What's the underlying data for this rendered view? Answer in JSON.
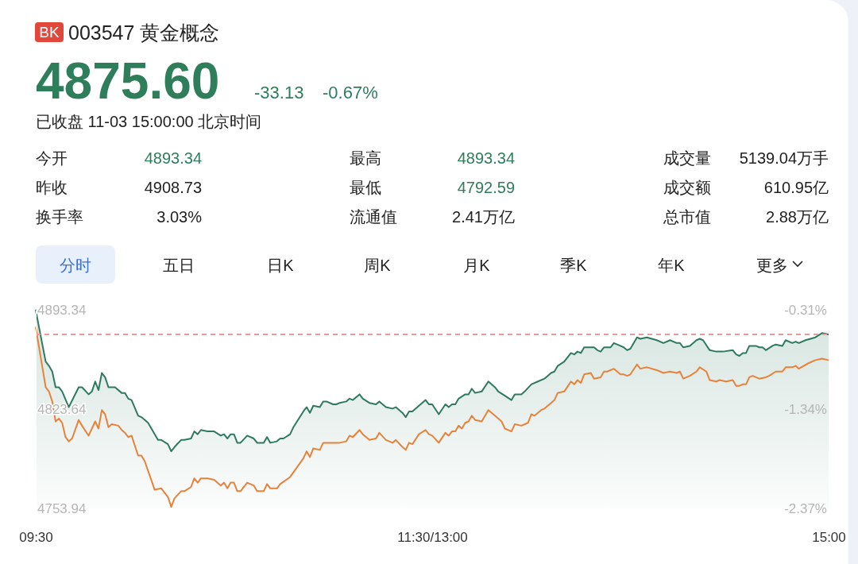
{
  "chart_data": {
    "type": "line",
    "title": "003547 黄金概念",
    "annotations": [
      "BK",
      "4875.60",
      "-33.13",
      "-0.67%",
      "已收盘 11-03 15:00:00 北京时间",
      "今开",
      "4893.34",
      "最高",
      "4893.34",
      "成交量",
      "5139.04万手",
      "昨收",
      "4908.73",
      "最低",
      "4792.59",
      "成交额",
      "610.95亿",
      "换手率",
      "3.03%",
      "流通值",
      "2.41万亿",
      "总市值",
      "2.88万亿",
      "分时",
      "五日",
      "日K",
      "周K",
      "月K",
      "季K",
      "年K",
      "更多"
    ],
    "categories": [
      "09:30",
      null,
      null,
      null,
      null,
      null,
      null,
      null,
      null,
      null,
      null,
      null,
      null,
      null,
      null,
      null,
      null,
      null,
      null,
      null,
      null,
      null,
      null,
      null,
      null,
      null,
      null,
      null,
      null,
      null,
      null,
      null,
      null,
      null,
      null,
      null,
      null,
      null,
      null,
      null,
      null,
      null,
      null,
      null,
      null,
      null,
      null,
      null,
      null,
      null,
      null,
      null,
      null,
      null,
      null,
      null,
      null,
      null,
      null,
      null,
      null,
      null,
      null,
      null,
      null,
      null,
      null,
      null,
      null,
      null,
      null,
      null,
      null,
      null,
      null,
      null,
      null,
      null,
      null,
      null,
      null,
      null,
      null,
      null,
      null,
      null,
      null,
      null,
      null,
      null,
      null,
      null,
      null,
      null,
      null,
      null,
      null,
      null,
      null,
      null,
      null,
      null,
      null,
      null,
      null,
      null,
      null,
      null,
      null,
      null,
      null,
      null,
      null,
      null,
      null,
      null,
      null,
      null,
      null,
      null,
      "11:30/13:00",
      null,
      null,
      null,
      null,
      null,
      null,
      null,
      null,
      null,
      null,
      null,
      null,
      null,
      null,
      null,
      null,
      null,
      null,
      null,
      null,
      null,
      null,
      null,
      null,
      null,
      null,
      null,
      null,
      null,
      null,
      null,
      null,
      null,
      null,
      null,
      null,
      null,
      null,
      null,
      null,
      null,
      null,
      null,
      null,
      null,
      null,
      null,
      null,
      null,
      null,
      null,
      null,
      null,
      null,
      null,
      null,
      null,
      null,
      null,
      null,
      null,
      null,
      null,
      null,
      null,
      null,
      null,
      null,
      null,
      null,
      null,
      null,
      null,
      null,
      null,
      null,
      null,
      null,
      null,
      null,
      null,
      null,
      null,
      null,
      null,
      null,
      null,
      null,
      null,
      null,
      null,
      null,
      null,
      null,
      null,
      null,
      null,
      null,
      null,
      null,
      null,
      null,
      null,
      null,
      null,
      null,
      null,
      null,
      null,
      null,
      null,
      null,
      null,
      null,
      null,
      null,
      null,
      null,
      null,
      "15:00"
    ],
    "ylim": [
      4753.94,
      4893.34
    ],
    "yticks": [
      4753.94,
      4823.64,
      4893.34
    ],
    "y2lim": [
      -2.37,
      -0.31
    ],
    "y2ticks": [
      {
        "value": -2.37,
        "label": "-2.37%"
      },
      {
        "value": -1.34,
        "label": "-1.34%"
      },
      {
        "value": -0.31,
        "label": "-0.31%"
      }
    ],
    "ref_lines": [
      {
        "axis": "y",
        "value": 4876,
        "color": "#e89a9a",
        "line_style": "dashed"
      }
    ],
    "series": [
      {
        "type": "area",
        "color": "#2f7a5e",
        "values": [
          4893,
          null,
          null,
          4857,
          4854,
          4850,
          4839,
          4839,
          4836,
          null,
          4825,
          null,
          null,
          4839,
          4839,
          null,
          4834,
          4836,
          4843,
          4837,
          4849,
          4846,
          4839,
          null,
          4839,
          null,
          4835,
          4835,
          4831,
          4830,
          null,
          4819,
          4818,
          null,
          4814,
          null,
          null,
          4802,
          4802,
          null,
          4799,
          4794,
          4797,
          null,
          4802,
          4802,
          null,
          4803,
          4808,
          4806,
          4809,
          null,
          4808,
          null,
          4808,
          null,
          4805,
          4806,
          4803,
          4806,
          4806,
          4800,
          4800,
          null,
          4805,
          null,
          4803,
          4800,
          null,
          4800,
          4804,
          4800,
          null,
          4801,
          4803,
          4803,
          null,
          4806,
          4811,
          null,
          null,
          4822,
          4825,
          4821,
          4826,
          null,
          4825,
          4829,
          4829,
          null,
          4827,
          4827,
          4828,
          null,
          4829,
          4831,
          4830,
          null,
          4834,
          4831,
          null,
          4828,
          null,
          4827,
          4829,
          null,
          4825,
          null,
          4824,
          4825,
          null,
          4821,
          4818,
          4822,
          4822,
          null,
          4826,
          null,
          4830,
          4827,
          4827,
          null,
          4820,
          null,
          4827,
          4825,
          4827,
          4827,
          4831,
          null,
          4834,
          4834,
          4838,
          4835,
          null,
          4836,
          null,
          4843,
          null,
          4839,
          4836,
          null,
          4833,
          null,
          4830,
          4834,
          null,
          4834,
          4836,
          null,
          4841,
          null,
          4843,
          null,
          4845,
          null,
          4849,
          4850,
          4854,
          null,
          4857,
          null,
          4863,
          4862,
          4864,
          4863,
          4867,
          4867,
          null,
          4867,
          4865,
          4864,
          4867,
          null,
          4867,
          4870,
          null,
          4868,
          4867,
          4865,
          4866,
          null,
          4874,
          4873,
          null,
          4874,
          null,
          null,
          4872,
          null,
          4870,
          null,
          4872,
          null,
          4870,
          4870,
          4867,
          null,
          4868,
          null,
          4872,
          4873,
          4872,
          null,
          4865,
          null,
          4864,
          4864,
          4864,
          null,
          null,
          4865,
          4862,
          4861,
          4863,
          4863,
          4868,
          null,
          4868,
          4867,
          4867,
          4865,
          null,
          4868,
          4869,
          null,
          4868,
          4872,
          null,
          4870,
          4871,
          4870,
          null,
          4872,
          null,
          null,
          4874,
          null,
          4877,
          null,
          4876
        ]
      },
      {
        "color": "#e8823a",
        "values": [
          4881,
          null,
          null,
          4839,
          4836,
          4829,
          4815,
          4817,
          4814,
          4804,
          4801,
          4803,
          null,
          4816,
          4812,
          null,
          4805,
          null,
          4815,
          4810,
          4823,
          4820,
          4811,
          4813,
          null,
          4812,
          4809,
          4807,
          4804,
          4805,
          null,
          4791,
          4791,
          4787,
          null,
          null,
          4767,
          null,
          4768,
          null,
          4762,
          4755,
          4761,
          null,
          4766,
          4766,
          null,
          4769,
          4775,
          4772,
          4775,
          null,
          4775,
          null,
          4774,
          null,
          4770,
          4772,
          4768,
          4772,
          4772,
          4766,
          4766,
          null,
          4772,
          null,
          4770,
          4766,
          null,
          4766,
          4771,
          4768,
          null,
          4768,
          4771,
          null,
          null,
          4776,
          null,
          null,
          null,
          4789,
          4794,
          4790,
          4796,
          null,
          4795,
          4800,
          null,
          4800,
          null,
          4800,
          4800,
          null,
          4801,
          4805,
          4804,
          null,
          4809,
          4806,
          null,
          4802,
          null,
          4803,
          4807,
          null,
          4802,
          null,
          4800,
          4802,
          null,
          4797,
          4795,
          4800,
          4799,
          null,
          4806,
          null,
          4809,
          4806,
          4805,
          null,
          4800,
          null,
          4807,
          4805,
          4808,
          4808,
          4812,
          4810,
          4814,
          4815,
          4819,
          4816,
          null,
          4815,
          null,
          4823,
          null,
          4819,
          null,
          4815,
          4810,
          null,
          4808,
          4813,
          null,
          4812,
          null,
          4814,
          4820,
          4819,
          null,
          4823,
          4824,
          null,
          4828,
          4830,
          4835,
          null,
          4836,
          null,
          4843,
          4841,
          4844,
          4842,
          4848,
          null,
          4849,
          4845,
          null,
          4846,
          4850,
          4850,
          null,
          4852,
          null,
          4848,
          4848,
          4847,
          4848,
          null,
          4855,
          4852,
          null,
          4853,
          null,
          null,
          4851,
          null,
          4849,
          null,
          4850,
          null,
          4849,
          4850,
          4845,
          null,
          4847,
          null,
          4850,
          4853,
          null,
          4850,
          4844,
          null,
          4843,
          4844,
          null,
          4843,
          null,
          4844,
          4840,
          4840,
          4841,
          4841,
          4846,
          4847,
          null,
          4845,
          null,
          4846,
          4847,
          null,
          4850,
          null,
          4850,
          4853,
          null,
          4853,
          4854,
          4852,
          null,
          null,
          4856,
          null,
          4858,
          null,
          4859,
          null,
          4858
        ]
      }
    ]
  }
}
